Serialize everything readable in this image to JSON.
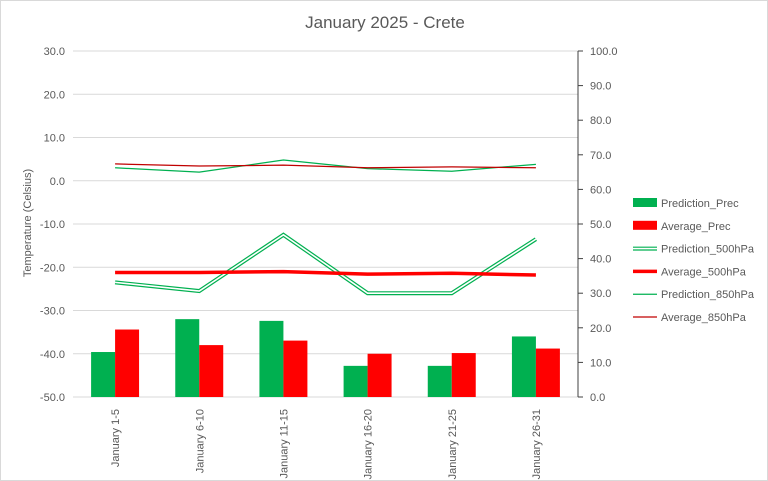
{
  "chart_data": {
    "type": "bar",
    "title": "January 2025 - Crete",
    "categories": [
      "January 1-5",
      "January 6-10",
      "January 11-15",
      "January 16-20",
      "January 21-25",
      "January 26-31"
    ],
    "ylabel": "Temperature (Celsius)",
    "ylim": [
      -50,
      30
    ],
    "y_ticks": [
      "30.0",
      "20.0",
      "10.0",
      "0.0",
      "-10.0",
      "-20.0",
      "-30.0",
      "-40.0",
      "-50.0"
    ],
    "y2lim": [
      0,
      100
    ],
    "y2_ticks": [
      "100.0",
      "90.0",
      "80.0",
      "70.0",
      "60.0",
      "50.0",
      "40.0",
      "30.0",
      "20.0",
      "10.0",
      "0.0"
    ],
    "grid": true,
    "legend_position": "right",
    "series": [
      {
        "name": "Prediction_Prec",
        "type": "bar",
        "axis": "secondary",
        "color": "#00b050",
        "values": [
          13.0,
          22.5,
          22.0,
          9.0,
          9.0,
          17.5
        ]
      },
      {
        "name": "Average_Prec",
        "type": "bar",
        "axis": "secondary",
        "color": "#ff0000",
        "values": [
          19.5,
          15.0,
          16.3,
          12.5,
          12.7,
          14.0
        ]
      },
      {
        "name": "Prediction_500hPa",
        "type": "line",
        "style": "double",
        "axis": "primary",
        "color": "#00b050",
        "values": [
          -23.5,
          -25.5,
          -12.5,
          -26.0,
          -26.0,
          -13.5
        ]
      },
      {
        "name": "Average_500hPa",
        "type": "line",
        "style": "thick",
        "axis": "primary",
        "color": "#ff0000",
        "values": [
          -21.2,
          -21.2,
          -21.0,
          -21.6,
          -21.4,
          -21.8
        ]
      },
      {
        "name": "Prediction_850hPa",
        "type": "line",
        "style": "thin",
        "axis": "primary",
        "color": "#00b050",
        "values": [
          3.0,
          2.0,
          4.8,
          2.8,
          2.2,
          3.8
        ]
      },
      {
        "name": "Average_850hPa",
        "type": "line",
        "style": "thin",
        "axis": "primary",
        "color": "#c00000",
        "values": [
          3.9,
          3.4,
          3.6,
          3.0,
          3.2,
          3.0
        ]
      }
    ]
  }
}
